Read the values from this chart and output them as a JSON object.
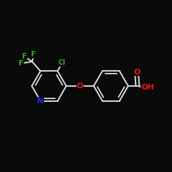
{
  "bg_color": "#0a0a0a",
  "bond_color": "#d8d8d8",
  "bond_width": 1.5,
  "atom_colors": {
    "N": "#2222ff",
    "O": "#ff1111",
    "F": "#22aa22",
    "Cl": "#22aa22"
  },
  "atom_fontsizes": {
    "N": 8,
    "O": 8,
    "F": 8,
    "Cl": 7,
    "OH": 8
  },
  "figsize": [
    2.5,
    2.5
  ],
  "dpi": 100,
  "xlim": [
    0.0,
    1.0
  ],
  "ylim": [
    0.1,
    0.9
  ]
}
